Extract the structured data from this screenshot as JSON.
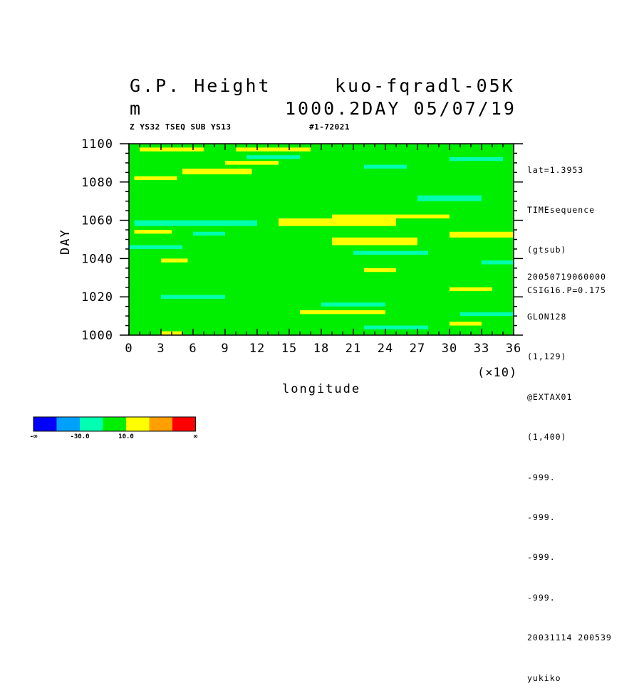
{
  "header": {
    "title_left": "G.P. Height",
    "title_right": "kuo-fqradl-05K",
    "units": "m",
    "level_date": "1000.2DAY 05/07/19",
    "sub_left": "Z YS32 TSEQ SUB YS13",
    "sub_right": "#1-72021"
  },
  "side_info": {
    "top": [
      "lat=1.3953",
      "TIMEsequence",
      "(gtsub)",
      "CSIG16.P=0.175"
    ],
    "bottom": [
      "20050719060000",
      "GLON128",
      "(1,129)",
      "@EXTAX01",
      "(1,400)",
      "-999.",
      "-999.",
      "-999.",
      "-999.",
      "20031114 200539",
      "yukiko"
    ]
  },
  "colorbar": {
    "colors": [
      "#0000ff",
      "#00a0ff",
      "#00ffb0",
      "#00ee00",
      "#ffff00",
      "#ffa000",
      "#ff0000"
    ],
    "labels": [
      "-∞",
      "-30.0",
      "10.0",
      "∞"
    ]
  },
  "chart_data": {
    "type": "heatmap",
    "title": "G.P. Height",
    "xlabel": "longitude",
    "ylabel": "DAY",
    "x_scale_note": "(×10)",
    "xlim": [
      0,
      36
    ],
    "ylim": [
      1000,
      1100
    ],
    "x_ticks": [
      "0",
      "3",
      "6",
      "9",
      "12",
      "15",
      "18",
      "21",
      "24",
      "27",
      "30",
      "33",
      "36"
    ],
    "y_ticks": [
      "1000",
      "1020",
      "1040",
      "1060",
      "1080",
      "1100"
    ],
    "background_class": "green",
    "class_colors": {
      "cyan": "#00ffb0",
      "green": "#00ee00",
      "yellow": "#ffff00"
    },
    "patches": [
      {
        "class": "yellow",
        "x": [
          0.5,
          4.5
        ],
        "y": [
          1081,
          1083
        ]
      },
      {
        "class": "yellow",
        "x": [
          5,
          11.5
        ],
        "y": [
          1084,
          1087
        ]
      },
      {
        "class": "yellow",
        "x": [
          9,
          14
        ],
        "y": [
          1089,
          1091
        ]
      },
      {
        "class": "yellow",
        "x": [
          1,
          7
        ],
        "y": [
          1096,
          1098
        ]
      },
      {
        "class": "yellow",
        "x": [
          10,
          17
        ],
        "y": [
          1096,
          1098
        ]
      },
      {
        "class": "yellow",
        "x": [
          0.5,
          4
        ],
        "y": [
          1053,
          1055
        ]
      },
      {
        "class": "yellow",
        "x": [
          14,
          25
        ],
        "y": [
          1057,
          1061
        ]
      },
      {
        "class": "yellow",
        "x": [
          19,
          30
        ],
        "y": [
          1061,
          1063
        ]
      },
      {
        "class": "yellow",
        "x": [
          30,
          36
        ],
        "y": [
          1051,
          1054
        ]
      },
      {
        "class": "yellow",
        "x": [
          19,
          27
        ],
        "y": [
          1047,
          1051
        ]
      },
      {
        "class": "yellow",
        "x": [
          3,
          5.5
        ],
        "y": [
          1038,
          1040
        ]
      },
      {
        "class": "yellow",
        "x": [
          22,
          25
        ],
        "y": [
          1033,
          1035
        ]
      },
      {
        "class": "yellow",
        "x": [
          30,
          34
        ],
        "y": [
          1023,
          1025
        ]
      },
      {
        "class": "yellow",
        "x": [
          16,
          24
        ],
        "y": [
          1011,
          1013
        ]
      },
      {
        "class": "yellow",
        "x": [
          30,
          33
        ],
        "y": [
          1005,
          1007
        ]
      },
      {
        "class": "yellow",
        "x": [
          3,
          5
        ],
        "y": [
          1000,
          1002
        ]
      },
      {
        "class": "cyan",
        "x": [
          11,
          16
        ],
        "y": [
          1092,
          1094
        ]
      },
      {
        "class": "cyan",
        "x": [
          30,
          35
        ],
        "y": [
          1091,
          1093
        ]
      },
      {
        "class": "cyan",
        "x": [
          22,
          26
        ],
        "y": [
          1087,
          1089
        ]
      },
      {
        "class": "cyan",
        "x": [
          27,
          33
        ],
        "y": [
          1070,
          1073
        ]
      },
      {
        "class": "cyan",
        "x": [
          0.5,
          12
        ],
        "y": [
          1057,
          1060
        ]
      },
      {
        "class": "cyan",
        "x": [
          6,
          9
        ],
        "y": [
          1052,
          1054
        ]
      },
      {
        "class": "cyan",
        "x": [
          21,
          28
        ],
        "y": [
          1042,
          1044
        ]
      },
      {
        "class": "cyan",
        "x": [
          0,
          5
        ],
        "y": [
          1045,
          1047
        ]
      },
      {
        "class": "cyan",
        "x": [
          33,
          36
        ],
        "y": [
          1037,
          1039
        ]
      },
      {
        "class": "cyan",
        "x": [
          3,
          9
        ],
        "y": [
          1019,
          1021
        ]
      },
      {
        "class": "cyan",
        "x": [
          18,
          24
        ],
        "y": [
          1015,
          1017
        ]
      },
      {
        "class": "cyan",
        "x": [
          31,
          36
        ],
        "y": [
          1010,
          1012
        ]
      },
      {
        "class": "cyan",
        "x": [
          22,
          28
        ],
        "y": [
          1003,
          1005
        ]
      }
    ]
  }
}
